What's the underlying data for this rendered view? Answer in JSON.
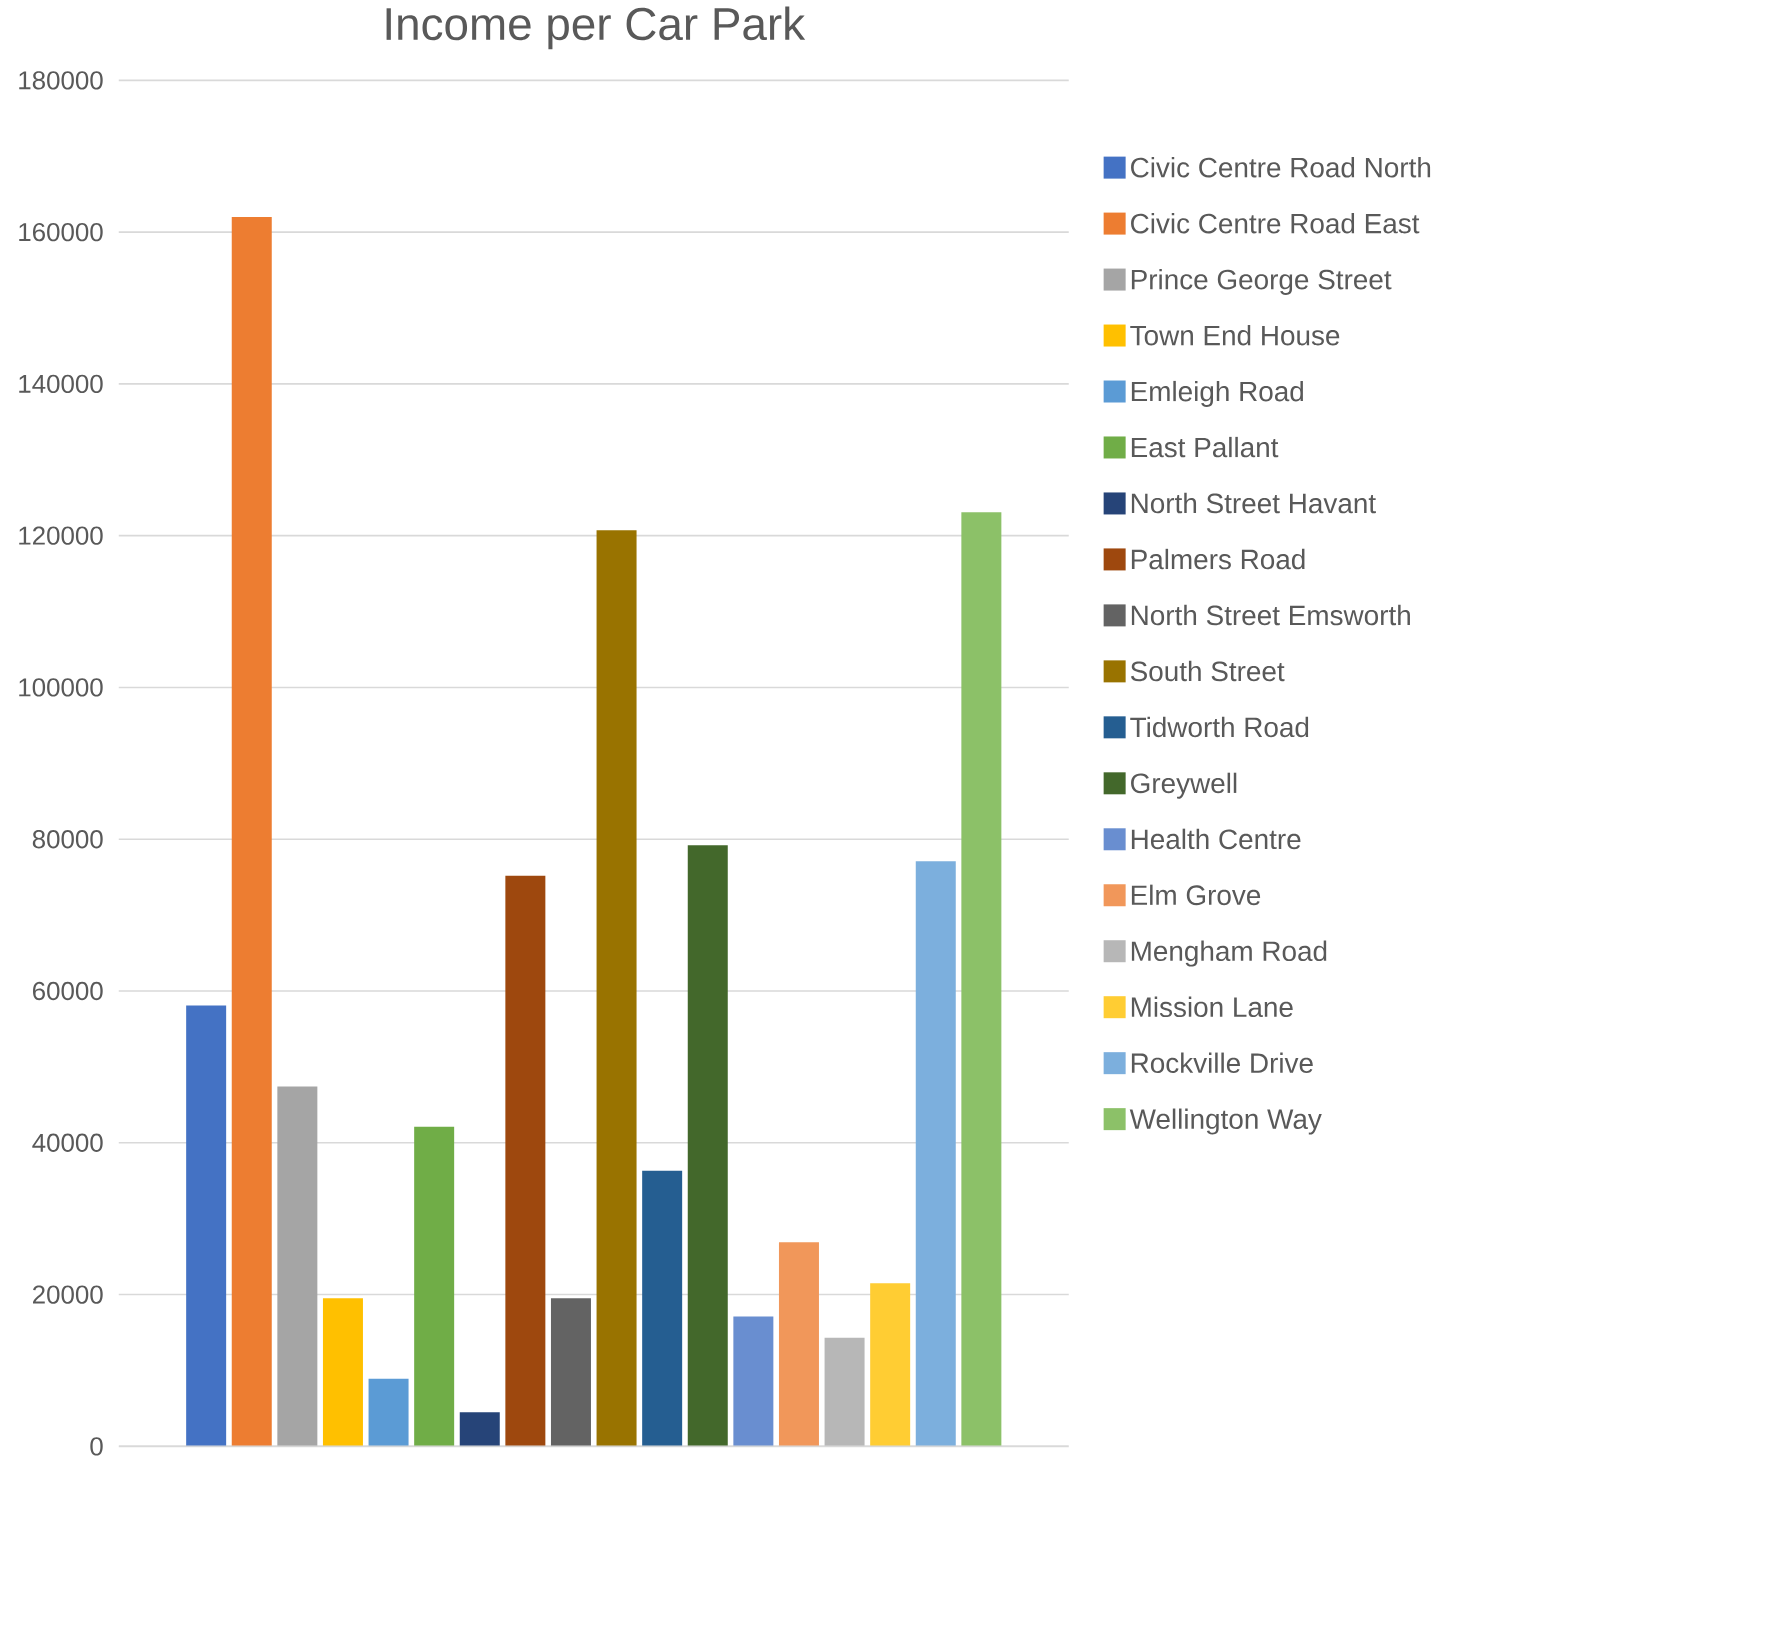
{
  "chart_data": {
    "type": "bar",
    "title": "Income per Car Park",
    "categories": [
      null
    ],
    "series": [
      {
        "name": "Civic Centre Road North",
        "color": "#4472c4",
        "values": [
          58100
        ]
      },
      {
        "name": "Civic Centre Road East",
        "color": "#ed7d31",
        "values": [
          162000
        ]
      },
      {
        "name": "Prince George Street",
        "color": "#a5a5a5",
        "values": [
          47400
        ]
      },
      {
        "name": "Town End House",
        "color": "#ffc000",
        "values": [
          19500
        ]
      },
      {
        "name": "Emleigh Road",
        "color": "#5b9bd5",
        "values": [
          8900
        ]
      },
      {
        "name": "East Pallant",
        "color": "#70ad47",
        "values": [
          42100
        ]
      },
      {
        "name": "North Street Havant",
        "color": "#264478",
        "values": [
          4500
        ]
      },
      {
        "name": "Palmers Road",
        "color": "#9e480e",
        "values": [
          75200
        ]
      },
      {
        "name": "North Street Emsworth",
        "color": "#636363",
        "values": [
          19500
        ]
      },
      {
        "name": "South Street",
        "color": "#997300",
        "values": [
          120700
        ]
      },
      {
        "name": "Tidworth Road",
        "color": "#255e91",
        "values": [
          36300
        ]
      },
      {
        "name": "Greywell",
        "color": "#43682b",
        "values": [
          79200
        ]
      },
      {
        "name": "Health Centre",
        "color": "#698ed0",
        "values": [
          17100
        ]
      },
      {
        "name": "Elm Grove",
        "color": "#f1975a",
        "values": [
          26900
        ]
      },
      {
        "name": "Mengham Road",
        "color": "#b7b7b7",
        "values": [
          14300
        ]
      },
      {
        "name": "Mission Lane",
        "color": "#ffcd33",
        "values": [
          21500
        ]
      },
      {
        "name": "Rockville Drive",
        "color": "#7cafdd",
        "values": [
          77100
        ]
      },
      {
        "name": "Wellington Way",
        "color": "#8cc168",
        "values": [
          123100
        ]
      }
    ],
    "ylim": [
      0,
      180000
    ],
    "yticks": [
      0,
      20000,
      40000,
      60000,
      80000,
      100000,
      120000,
      140000,
      160000,
      180000
    ],
    "grid": "y",
    "legend": "right"
  }
}
